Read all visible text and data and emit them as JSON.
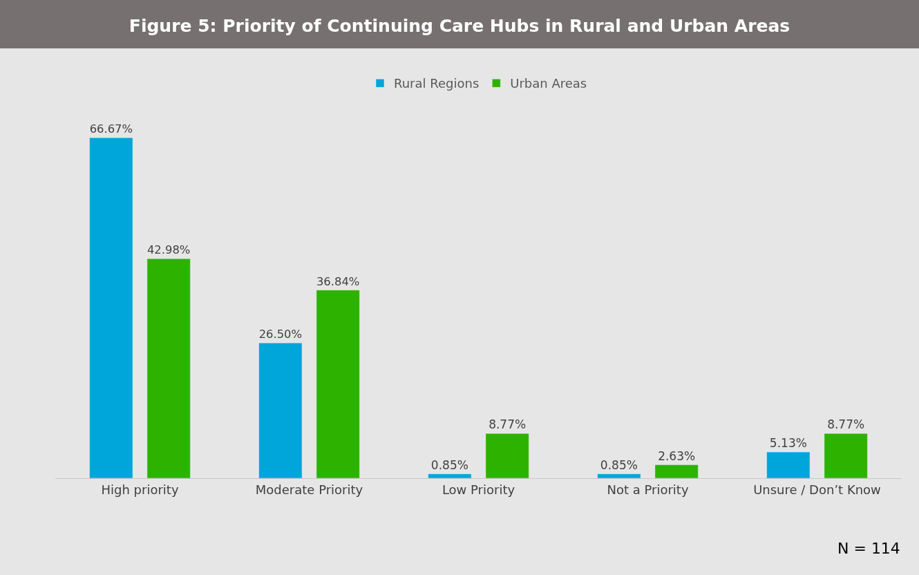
{
  "chart_data": {
    "type": "bar",
    "title": "Figure 5: Priority of Continuing Care Hubs in Rural and Urban Areas",
    "categories": [
      "High priority",
      "Moderate Priority",
      "Low Priority",
      "Not a Priority",
      "Unsure / Don’t Know"
    ],
    "series": [
      {
        "name": "Rural Regions",
        "color": "#00a6da",
        "values": [
          66.67,
          26.5,
          0.85,
          0.85,
          5.13
        ],
        "value_labels": [
          "66.67%",
          "26.50%",
          "0.85%",
          "0.85%",
          "5.13%"
        ]
      },
      {
        "name": "Urban Areas",
        "color": "#2eb200",
        "values": [
          42.98,
          36.84,
          8.77,
          2.63,
          8.77
        ],
        "value_labels": [
          "42.98%",
          "36.84%",
          "8.77%",
          "2.63%",
          "8.77%"
        ]
      }
    ],
    "annotations": [
      "N = 114"
    ],
    "legend": "top",
    "grid": false
  }
}
